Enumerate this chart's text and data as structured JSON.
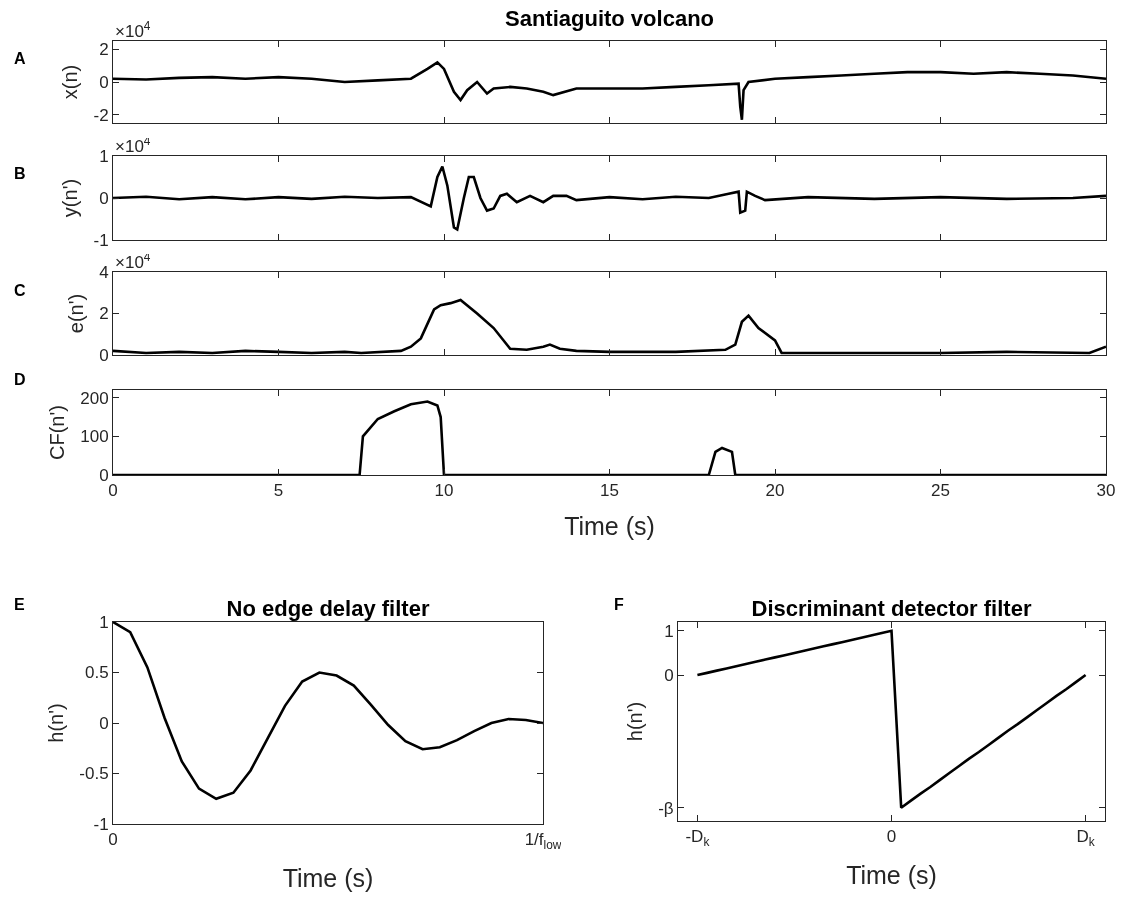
{
  "chart_data": [
    {
      "type": "line",
      "title": "Santiaguito volcano",
      "ylabel": "x(n)",
      "annotations": [
        "A",
        "×10$^{4}$"
      ],
      "tick_labels": "y",
      "xlim": [
        0,
        30
      ],
      "xticks": [
        0,
        5,
        10,
        15,
        20,
        25,
        30
      ],
      "ylim": [
        -2.5,
        2.5
      ],
      "yticks": [
        -2,
        0,
        2
      ],
      "grid": false,
      "x": [
        0,
        1,
        2,
        3,
        4,
        5,
        6,
        7,
        8,
        9,
        9.5,
        9.8,
        10,
        10.3,
        10.5,
        10.7,
        11,
        11.3,
        11.5,
        12,
        12.5,
        13,
        13.3,
        14,
        15,
        16,
        17,
        18,
        18.9,
        18.95,
        19.0,
        19.05,
        19.2,
        20,
        21,
        22,
        23,
        24,
        25,
        26,
        27,
        28,
        29,
        30
      ],
      "series": [
        {
          "color": "#000000",
          "values": [
            0.2,
            0.15,
            0.25,
            0.3,
            0.2,
            0.3,
            0.2,
            0.0,
            0.1,
            0.2,
            0.8,
            1.2,
            0.8,
            -0.6,
            -1.1,
            -0.5,
            0.0,
            -0.7,
            -0.4,
            -0.3,
            -0.4,
            -0.6,
            -0.8,
            -0.4,
            -0.4,
            -0.4,
            -0.3,
            -0.2,
            -0.1,
            -1.5,
            -2.3,
            -0.5,
            0.0,
            0.2,
            0.3,
            0.4,
            0.5,
            0.6,
            0.6,
            0.5,
            0.6,
            0.5,
            0.4,
            0.2
          ]
        }
      ]
    },
    {
      "type": "line",
      "ylabel": "y(n')",
      "annotations": [
        "B",
        "×10$^{4}$"
      ],
      "tick_labels": "y",
      "xlim": [
        0,
        30
      ],
      "xticks": [
        0,
        5,
        10,
        15,
        20,
        25,
        30
      ],
      "ylim": [
        -1,
        1
      ],
      "yticks": [
        -1,
        0,
        1
      ],
      "grid": false,
      "x": [
        0,
        1,
        2,
        3,
        4,
        5,
        6,
        7,
        8,
        9,
        9.6,
        9.8,
        9.95,
        10.1,
        10.3,
        10.4,
        10.6,
        10.75,
        10.9,
        11.1,
        11.3,
        11.5,
        11.7,
        11.9,
        12.2,
        12.6,
        13,
        13.3,
        13.7,
        14,
        15,
        16,
        17,
        18,
        18.6,
        18.9,
        18.95,
        19.1,
        19.15,
        19.4,
        19.7,
        21,
        23,
        25,
        27,
        29,
        30
      ],
      "series": [
        {
          "color": "#000000",
          "values": [
            0,
            0.03,
            -0.03,
            0.02,
            -0.03,
            0.02,
            -0.02,
            0.03,
            0,
            0.02,
            -0.2,
            0.5,
            0.75,
            0.3,
            -0.7,
            -0.75,
            0,
            0.5,
            0.5,
            0,
            -0.3,
            -0.25,
            0.05,
            0.1,
            -0.1,
            0.05,
            -0.1,
            0.05,
            0.05,
            -0.05,
            0.02,
            -0.03,
            0.03,
            0,
            0.1,
            0.15,
            -0.35,
            -0.3,
            0.15,
            0.05,
            -0.05,
            0.02,
            -0.02,
            0.02,
            -0.02,
            0,
            0.05
          ]
        }
      ]
    },
    {
      "type": "line",
      "ylabel": "e(n')",
      "annotations": [
        "C",
        "×10$^{4}$"
      ],
      "tick_labels": "y",
      "xlim": [
        0,
        30
      ],
      "xticks": [
        0,
        5,
        10,
        15,
        20,
        25,
        30
      ],
      "ylim": [
        0,
        4
      ],
      "yticks": [
        0,
        2,
        4
      ],
      "grid": false,
      "x": [
        0,
        1,
        2,
        3,
        4,
        5,
        6,
        7,
        7.5,
        8.7,
        9,
        9.3,
        9.5,
        9.7,
        9.9,
        10.2,
        10.5,
        11,
        11.5,
        12,
        12.5,
        13,
        13.2,
        13.5,
        14,
        15,
        17,
        18.5,
        18.8,
        19.0,
        19.2,
        19.5,
        20,
        20.2,
        22,
        25,
        27,
        29.5,
        30
      ],
      "series": [
        {
          "color": "#000000",
          "values": [
            0.2,
            0.1,
            0.15,
            0.1,
            0.2,
            0.15,
            0.1,
            0.15,
            0.1,
            0.2,
            0.4,
            0.8,
            1.5,
            2.2,
            2.4,
            2.5,
            2.65,
            2.0,
            1.3,
            0.3,
            0.25,
            0.4,
            0.5,
            0.3,
            0.2,
            0.15,
            0.15,
            0.25,
            0.5,
            1.6,
            1.9,
            1.3,
            0.7,
            0.1,
            0.1,
            0.1,
            0.15,
            0.1,
            0.4
          ]
        }
      ]
    },
    {
      "type": "line",
      "xlabel": "Time (s)",
      "ylabel": "CF(n')",
      "annotations": [
        "D"
      ],
      "xlim": [
        0,
        30
      ],
      "xticks": [
        0,
        5,
        10,
        15,
        20,
        25,
        30
      ],
      "ylim": [
        0,
        220
      ],
      "yticks": [
        0,
        100,
        200
      ],
      "grid": false,
      "x": [
        0,
        7.45,
        7.55,
        8,
        8.5,
        9,
        9.5,
        9.8,
        9.9,
        10.0,
        18.0,
        18.2,
        18.4,
        18.7,
        18.8,
        30
      ],
      "series": [
        {
          "color": "#000000",
          "values": [
            0,
            0,
            100,
            145,
            165,
            183,
            190,
            180,
            150,
            0,
            0,
            60,
            70,
            60,
            0,
            0
          ]
        }
      ]
    },
    {
      "type": "line",
      "title": "No edge delay filter",
      "xlabel": "Time (s)",
      "ylabel": "h(n')",
      "annotations": [
        "E"
      ],
      "ylim": [
        -1,
        1
      ],
      "yticks": [
        -1,
        -0.5,
        0,
        0.5,
        1
      ],
      "grid": false,
      "categories": [
        "0",
        null,
        null,
        null,
        null,
        null,
        null,
        null,
        null,
        null,
        null,
        null,
        null,
        null,
        null,
        null,
        null,
        null,
        null,
        null,
        null,
        null,
        null,
        null,
        null,
        "1/f$_{low}$"
      ],
      "series": [
        {
          "color": "#000000",
          "values": [
            1,
            0.9,
            0.55,
            0.05,
            -0.38,
            -0.65,
            -0.75,
            -0.69,
            -0.47,
            -0.15,
            0.17,
            0.41,
            0.5,
            0.47,
            0.37,
            0.18,
            -0.02,
            -0.18,
            -0.26,
            -0.24,
            -0.17,
            -0.08,
            0,
            0.04,
            0.03,
            0
          ]
        }
      ]
    },
    {
      "type": "line",
      "title": "Discriminant detector filter",
      "xlabel": "Time (s)",
      "ylabel": "h(n')",
      "annotations": [
        "F"
      ],
      "ylim": [
        -3.3,
        1.2
      ],
      "yticks": [
        {
          "value": -3,
          "label": "-β"
        },
        0,
        1
      ],
      "grid": false,
      "categories": [
        "-D$_{k}$",
        null,
        null,
        null,
        null,
        null,
        null,
        null,
        null,
        null,
        null,
        null,
        null,
        null,
        null,
        null,
        null,
        null,
        null,
        null,
        "0",
        null,
        null,
        null,
        null,
        null,
        null,
        null,
        null,
        null,
        null,
        null,
        null,
        null,
        null,
        null,
        null,
        null,
        null,
        null,
        "D$_{k}$"
      ],
      "series": [
        {
          "color": "#000000",
          "values": [
            0,
            0.05,
            0.1,
            0.15,
            0.2,
            0.25,
            0.3,
            0.35,
            0.4,
            0.45,
            0.5,
            0.55,
            0.6,
            0.65,
            0.7,
            0.75,
            0.8,
            0.85,
            0.9,
            0.95,
            1,
            -3,
            -2.84,
            -2.68,
            -2.53,
            -2.37,
            -2.21,
            -2.05,
            -1.89,
            -1.74,
            -1.58,
            -1.42,
            -1.26,
            -1.11,
            -0.95,
            -0.79,
            -0.63,
            -0.47,
            -0.32,
            -0.16,
            0
          ]
        }
      ]
    }
  ]
}
